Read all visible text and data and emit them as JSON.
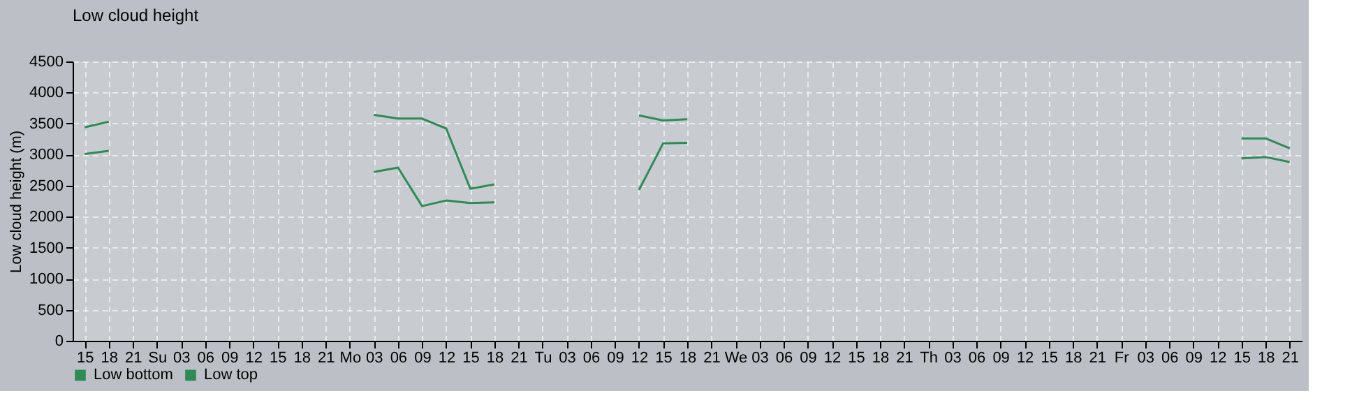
{
  "chart_data": {
    "type": "line",
    "title": "Low cloud height",
    "ylabel": "Low cloud height (m)",
    "categories": [
      "15",
      "18",
      "21",
      "Su",
      "03",
      "06",
      "09",
      "12",
      "15",
      "18",
      "21",
      "Mo",
      "03",
      "06",
      "09",
      "12",
      "15",
      "18",
      "21",
      "Tu",
      "03",
      "06",
      "09",
      "12",
      "15",
      "18",
      "21",
      "We",
      "03",
      "06",
      "09",
      "12",
      "15",
      "18",
      "21",
      "Th",
      "03",
      "06",
      "09",
      "12",
      "15",
      "18",
      "21",
      "Fr",
      "03",
      "06",
      "09",
      "12",
      "15",
      "18",
      "21"
    ],
    "series": [
      {
        "name": "Low bottom",
        "color": "#2e8b57",
        "values": [
          3010,
          3060,
          null,
          null,
          null,
          null,
          null,
          null,
          null,
          null,
          null,
          null,
          2720,
          2790,
          2170,
          2260,
          2220,
          2230,
          null,
          null,
          null,
          null,
          null,
          2430,
          3180,
          3190,
          null,
          null,
          null,
          null,
          null,
          null,
          null,
          null,
          null,
          null,
          null,
          null,
          null,
          null,
          null,
          null,
          null,
          null,
          null,
          null,
          null,
          null,
          2940,
          2960,
          2880
        ]
      },
      {
        "name": "Low top",
        "color": "#2e8b57",
        "values": [
          3440,
          3530,
          null,
          null,
          null,
          null,
          null,
          null,
          null,
          null,
          null,
          null,
          3640,
          3580,
          3580,
          3420,
          2450,
          2520,
          null,
          null,
          null,
          null,
          null,
          3630,
          3550,
          3570,
          null,
          null,
          null,
          null,
          null,
          null,
          null,
          null,
          null,
          null,
          null,
          null,
          null,
          null,
          null,
          null,
          null,
          null,
          null,
          null,
          null,
          null,
          3260,
          3260,
          3100
        ]
      }
    ],
    "ylim": [
      0,
      4500
    ],
    "yticks": [
      0,
      500,
      1000,
      1500,
      2000,
      2500,
      3000,
      3500,
      4000,
      4500
    ],
    "grid": true,
    "legend": "bottom left",
    "marker": "none",
    "line_style": "solid"
  }
}
